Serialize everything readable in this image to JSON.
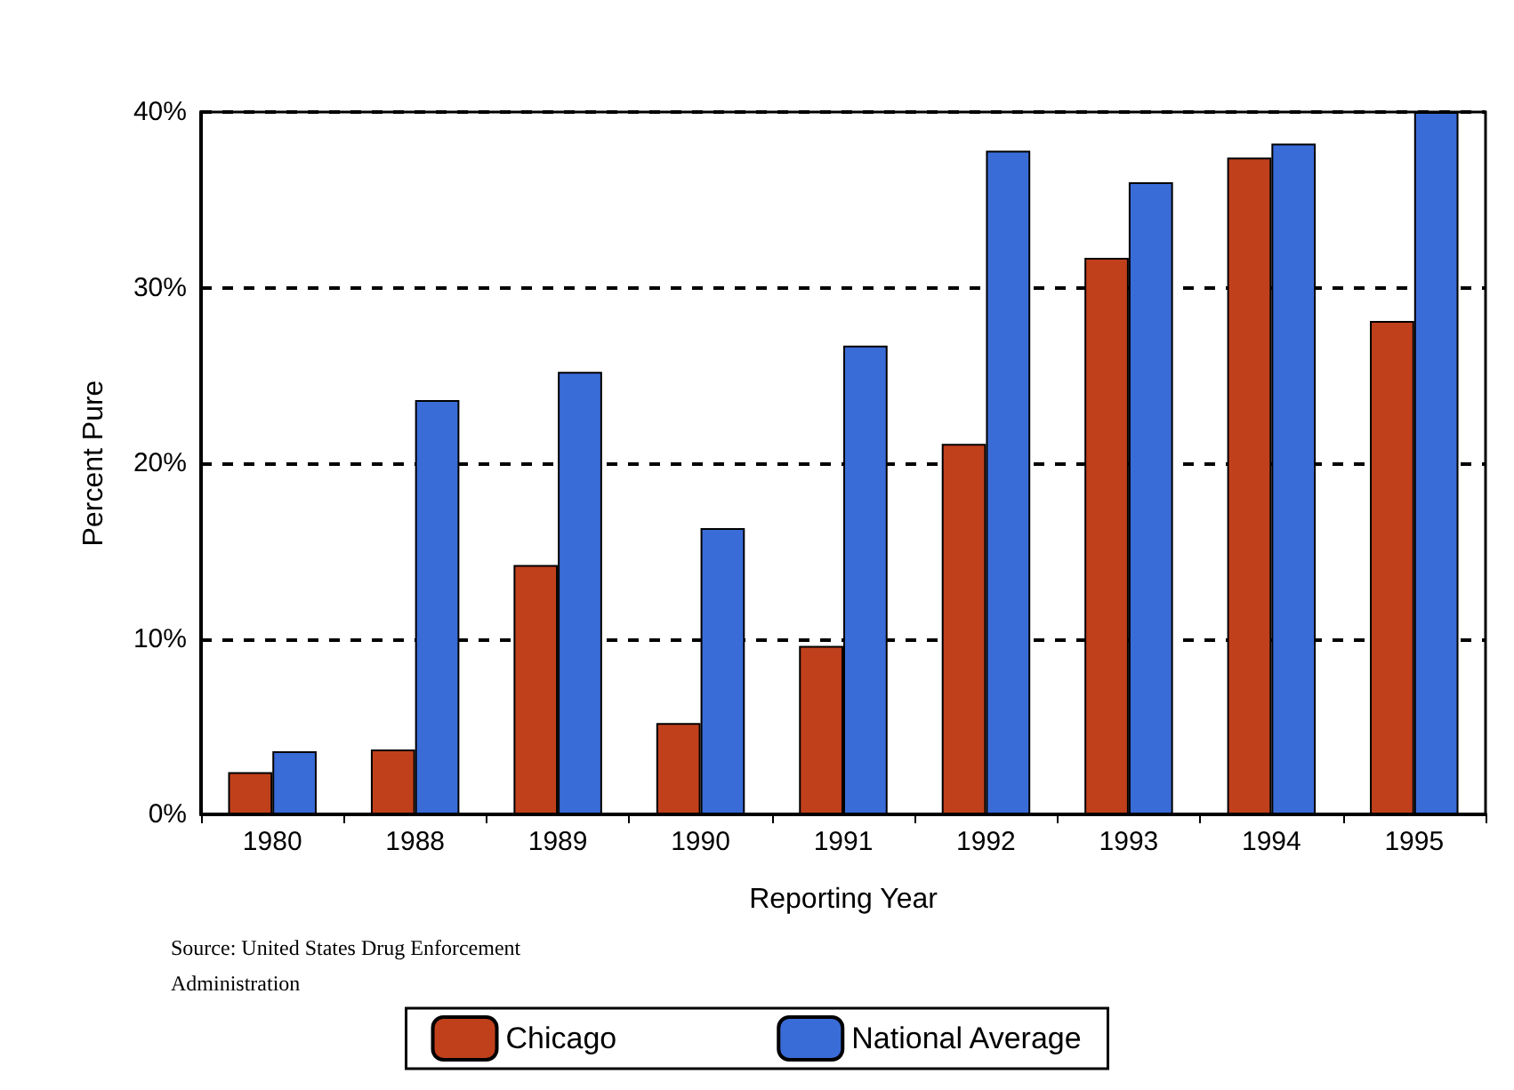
{
  "chart_data": {
    "type": "bar",
    "xlabel": "Reporting Year",
    "ylabel": "Percent Pure",
    "categories": [
      "1980",
      "1988",
      "1989",
      "1990",
      "1991",
      "1992",
      "1993",
      "1994",
      "1995"
    ],
    "series": [
      {
        "name": "Chicago",
        "color": "#c0401c",
        "values": [
          2.4,
          3.7,
          14.2,
          5.2,
          9.6,
          21.1,
          31.7,
          37.4,
          28.1
        ]
      },
      {
        "name": "National Average",
        "color": "#3a6cd8",
        "values": [
          3.6,
          23.6,
          25.2,
          16.3,
          26.7,
          37.8,
          36.0,
          38.2,
          40.0
        ]
      }
    ],
    "ylim": [
      0,
      40
    ],
    "yticks": [
      {
        "value": 0,
        "label": "0%"
      },
      {
        "value": 10,
        "label": "10%"
      },
      {
        "value": 20,
        "label": "20%"
      },
      {
        "value": 30,
        "label": "30%"
      },
      {
        "value": 40,
        "label": "40%"
      }
    ],
    "grid": "y",
    "legend": "bottom",
    "annotations": [
      "Source: United States Drug Enforcement Administration"
    ]
  }
}
